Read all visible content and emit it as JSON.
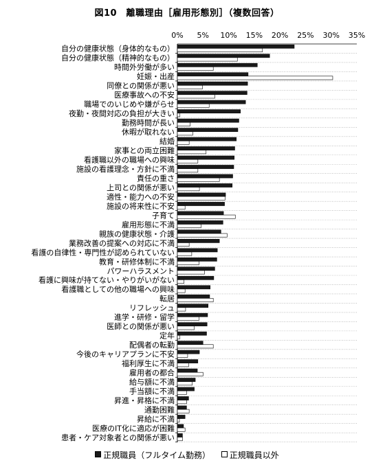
{
  "chart_data": {
    "type": "bar",
    "orientation": "horizontal",
    "title": "図10　離職理由［雇用形態別］（複数回答）",
    "xlim": [
      0,
      35
    ],
    "x_ticks": [
      "0%",
      "5%",
      "10%",
      "15%",
      "20%",
      "25%",
      "30%",
      "35%"
    ],
    "legend_position": "bottom",
    "categories": [
      "自分の健康状態（身体的なもの）",
      "自分の健康状態（精神的なもの）",
      "時間外労働が多い",
      "妊娠・出産",
      "同僚との関係が悪い",
      "医療事故への不安",
      "職場でのいじめや嫌がらせ",
      "夜勤・夜間対応の負担が大きい",
      "勤務時間が長い",
      "休暇が取れない",
      "結婚",
      "家事との両立困難",
      "看護職以外の職場への興味",
      "施設の看護理念・方針に不満",
      "責任の重さ",
      "上司との関係が悪い",
      "適性・能力への不安",
      "施設の将来性に不安",
      "子育て",
      "雇用形態に不満",
      "親族の健康状態・介護",
      "業務改善の提案への対応に不満",
      "看護の自律性・専門性が認められていない",
      "教育・研修体制に不満",
      "パワーハラスメント",
      "看護に興味が持てない・やりがいがない",
      "看護職としての他の職場への興味",
      "転居",
      "リフレッシュ",
      "進学・研修・留学",
      "医師との関係が悪い",
      "定年",
      "配偶者の転勤",
      "今後のキャリアプランに不安",
      "福利厚生に不満",
      "雇用者の都合",
      "給与額に不満",
      "手当額に不満",
      "昇進・昇格に不満",
      "通勤困難",
      "昇給に不満",
      "医療のIT化に適応が困難",
      "患者・ケア対象者との関係が悪い"
    ],
    "series": [
      {
        "name": "正規職員（フルタイム勤務）",
        "color": "#1a1a1a",
        "values": [
          22.8,
          18.0,
          15.6,
          13.8,
          13.7,
          13.6,
          13.3,
          12.3,
          12.0,
          11.8,
          11.5,
          11.2,
          11.1,
          11.0,
          10.8,
          10.7,
          9.4,
          9.2,
          9.0,
          8.9,
          8.5,
          8.2,
          7.8,
          7.7,
          7.3,
          7.1,
          6.4,
          6.3,
          6.0,
          5.9,
          5.8,
          5.7,
          5.0,
          4.3,
          4.0,
          3.9,
          3.5,
          3.3,
          2.2,
          1.8,
          1.5,
          1.2,
          1.0
        ]
      },
      {
        "name": "正規職員以外",
        "color": "#ffffff",
        "values": [
          16.6,
          11.7,
          7.0,
          30.3,
          4.9,
          7.3,
          6.2,
          0.5,
          2.5,
          3.0,
          2.3,
          5.6,
          4.0,
          4.0,
          8.2,
          4.3,
          9.3,
          1.5,
          11.3,
          4.6,
          9.7,
          2.3,
          2.8,
          4.2,
          5.3,
          1.3,
          1.5,
          7.0,
          1.6,
          4.2,
          3.3,
          0.5,
          7.0,
          2.0,
          2.2,
          5.0,
          2.9,
          1.8,
          1.8,
          2.3,
          0.4,
          1.5,
          1.0
        ]
      }
    ]
  }
}
